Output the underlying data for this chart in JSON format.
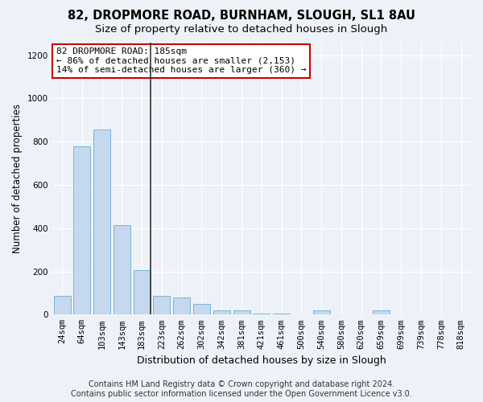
{
  "title1": "82, DROPMORE ROAD, BURNHAM, SLOUGH, SL1 8AU",
  "title2": "Size of property relative to detached houses in Slough",
  "xlabel": "Distribution of detached houses by size in Slough",
  "ylabel": "Number of detached properties",
  "categories": [
    "24sqm",
    "64sqm",
    "103sqm",
    "143sqm",
    "183sqm",
    "223sqm",
    "262sqm",
    "302sqm",
    "342sqm",
    "381sqm",
    "421sqm",
    "461sqm",
    "500sqm",
    "540sqm",
    "580sqm",
    "620sqm",
    "659sqm",
    "699sqm",
    "739sqm",
    "778sqm",
    "818sqm"
  ],
  "values": [
    85,
    780,
    855,
    415,
    205,
    85,
    80,
    50,
    20,
    20,
    5,
    5,
    0,
    20,
    0,
    0,
    20,
    0,
    0,
    0,
    0
  ],
  "bar_color": "#c5d8ed",
  "bar_edge_color": "#6aaed6",
  "highlight_bar_index": 4,
  "highlight_line_color": "#333333",
  "ylim": [
    0,
    1260
  ],
  "yticks": [
    0,
    200,
    400,
    600,
    800,
    1000,
    1200
  ],
  "annotation_line1": "82 DROPMORE ROAD: 185sqm",
  "annotation_line2": "← 86% of detached houses are smaller (2,153)",
  "annotation_line3": "14% of semi-detached houses are larger (360) →",
  "annotation_box_color": "#ffffff",
  "annotation_box_edge_color": "#cc0000",
  "footer_line1": "Contains HM Land Registry data © Crown copyright and database right 2024.",
  "footer_line2": "Contains public sector information licensed under the Open Government Licence v3.0.",
  "bg_color": "#eef2f8",
  "plot_bg_color": "#eef2f8",
  "grid_color": "#ffffff",
  "title1_fontsize": 10.5,
  "title2_fontsize": 9.5,
  "xlabel_fontsize": 9,
  "ylabel_fontsize": 8.5,
  "tick_fontsize": 7.5,
  "footer_fontsize": 7,
  "annotation_fontsize": 8
}
